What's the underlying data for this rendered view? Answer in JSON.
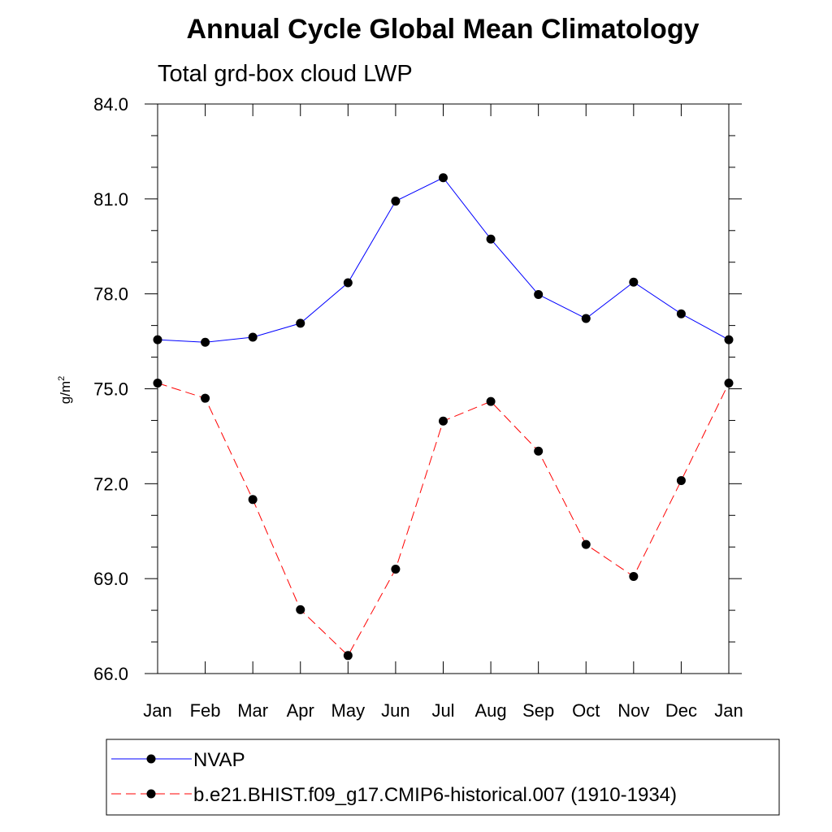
{
  "chart_data": {
    "type": "line",
    "title": "Annual Cycle Global Mean Climatology",
    "subtitle": "Total grd-box cloud LWP",
    "ylabel_base": "g/m",
    "ylabel_sup": "2",
    "xlabel": "",
    "categories": [
      "Jan",
      "Feb",
      "Mar",
      "Apr",
      "May",
      "Jun",
      "Jul",
      "Aug",
      "Sep",
      "Oct",
      "Nov",
      "Dec",
      "Jan"
    ],
    "ylim": [
      66.0,
      84.0
    ],
    "yticks": [
      66.0,
      69.0,
      72.0,
      75.0,
      78.0,
      81.0,
      84.0
    ],
    "ytick_labels": [
      "66.0",
      "69.0",
      "72.0",
      "75.0",
      "78.0",
      "81.0",
      "84.0"
    ],
    "series": [
      {
        "name": "NVAP",
        "color": "#0000ff",
        "style": "solid",
        "values": [
          76.55,
          76.47,
          76.63,
          77.07,
          78.35,
          80.93,
          81.67,
          79.73,
          77.98,
          77.22,
          78.37,
          77.37,
          76.55
        ]
      },
      {
        "name": "b.e21.BHIST.f09_g17.CMIP6-historical.007 (1910-1934)",
        "color": "#ff0000",
        "style": "dashed",
        "values": [
          75.18,
          74.7,
          71.5,
          68.02,
          66.57,
          69.3,
          73.98,
          74.6,
          73.03,
          70.08,
          69.07,
          72.1,
          75.18
        ]
      }
    ],
    "legend_position": "bottom"
  }
}
